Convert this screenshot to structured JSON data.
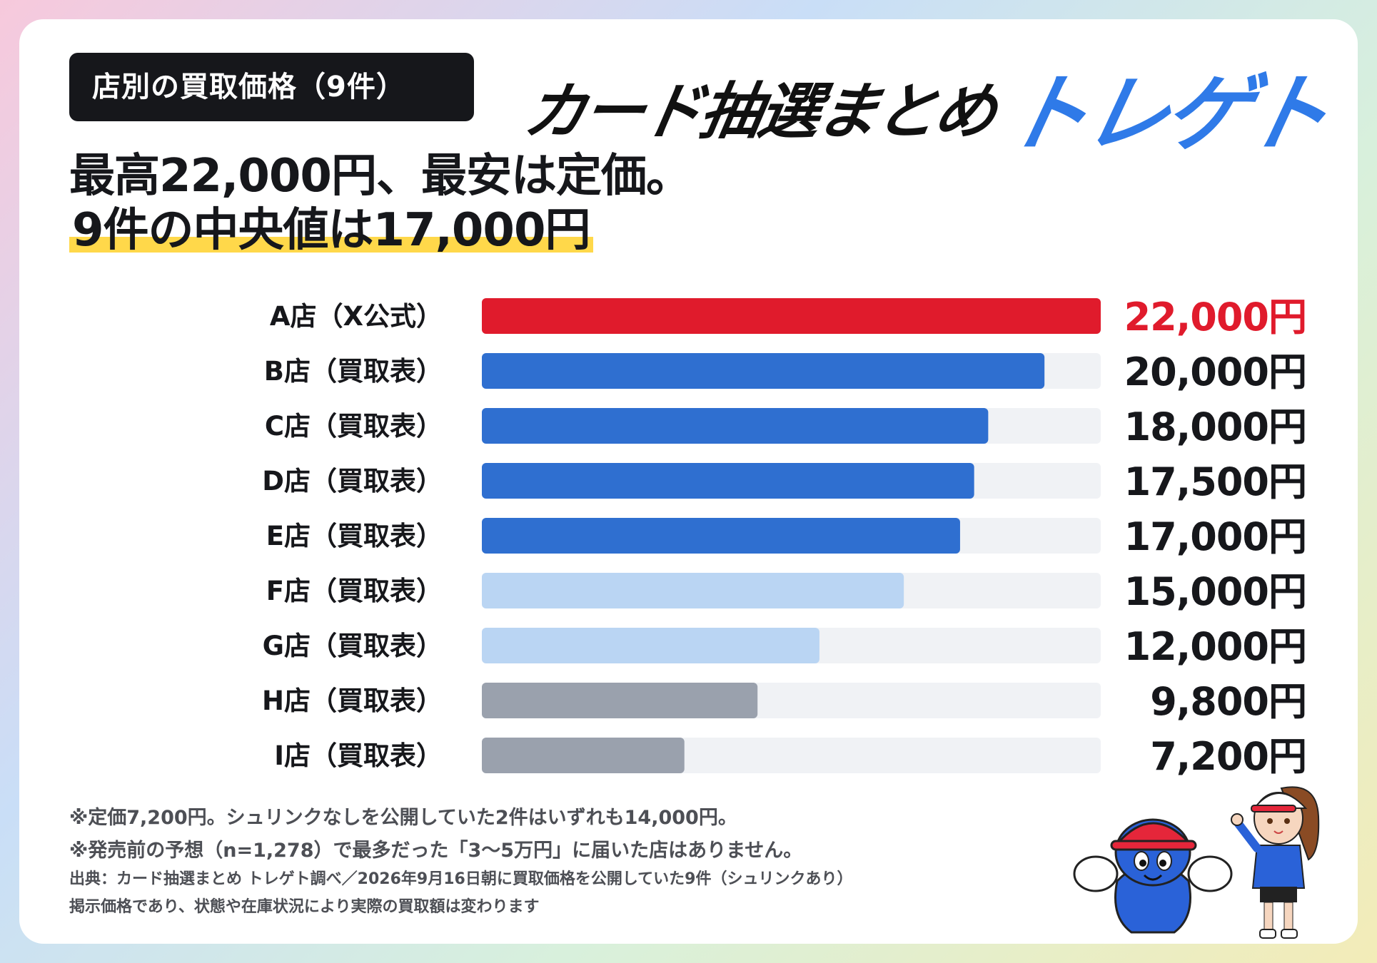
{
  "tag": "店別の買取価格（9件）",
  "headline": {
    "line1": "最高22,000円、最安は定価。",
    "line2": "9件の中央値は17,000円"
  },
  "logo": {
    "part1": "カード抽選まとめ",
    "part2": "トレゲト"
  },
  "colors": {
    "top": "#e01b2c",
    "high": "#2f6fd0",
    "mid": "#bad5f3",
    "low": "#9aa1ad",
    "track": "#f0f2f5",
    "text": "#16171b",
    "accent_logo": "#2f7ae8",
    "highlight": "#ffd84a"
  },
  "chart_data": {
    "type": "bar",
    "orientation": "horizontal",
    "xlim": [
      0,
      22000
    ],
    "categories": [
      "A店（X公式）",
      "B店（買取表）",
      "C店（買取表）",
      "D店（買取表）",
      "E店（買取表）",
      "F店（買取表）",
      "G店（買取表）",
      "H店（買取表）",
      "I店（買取表）"
    ],
    "values": [
      22000,
      20000,
      18000,
      17500,
      17000,
      15000,
      12000,
      9800,
      7200
    ],
    "value_labels": [
      "22,000円",
      "20,000円",
      "18,000円",
      "17,500円",
      "17,000円",
      "15,000円",
      "12,000円",
      "9,800円",
      "7,200円"
    ],
    "bar_color_groups": [
      "top",
      "high",
      "high",
      "high",
      "high",
      "mid",
      "mid",
      "low",
      "low"
    ]
  },
  "notes": [
    "※定価7,200円。シュリンクなしを公開していた2件はいずれも14,000円。",
    "※発売前の予想（n=1,278）で最多だった「3〜5万円」に届いた店はありません。",
    "出典：カード抽選まとめ トレゲト調べ／2026年9月16日朝に買取価格を公開していた9件（シュリンクあり）",
    "掲示価格であり、状態や在庫状況により実際の買取額は変わります"
  ]
}
